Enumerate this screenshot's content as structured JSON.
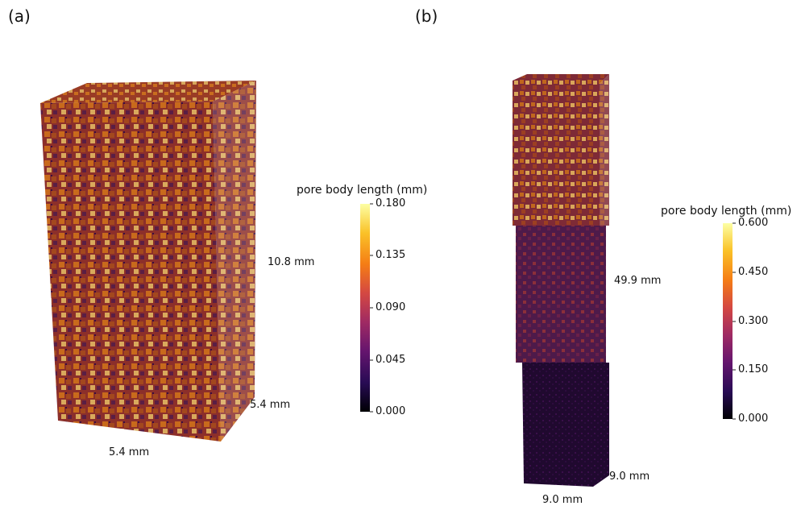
{
  "panels": [
    {
      "label": "(a)",
      "dimensions": {
        "height": "10.8 mm",
        "depth": "5.4 mm",
        "width": "5.4 mm"
      },
      "colorbar": {
        "title": "pore body length (mm)",
        "ticks": [
          "0.180",
          "0.135",
          "0.090",
          "0.045",
          "0.000"
        ]
      }
    },
    {
      "label": "(b)",
      "dimensions": {
        "height": "49.9 mm",
        "depth": "9.0 mm",
        "width": "9.0 mm"
      },
      "colorbar": {
        "title": "pore body length (mm)",
        "ticks": [
          "0.600",
          "0.450",
          "0.300",
          "0.150",
          "0.000"
        ]
      }
    }
  ],
  "colormap": [
    "#000004",
    "#280b54",
    "#65156e",
    "#9f2a63",
    "#d44842",
    "#f57d15",
    "#fac228",
    "#fcffa4"
  ]
}
